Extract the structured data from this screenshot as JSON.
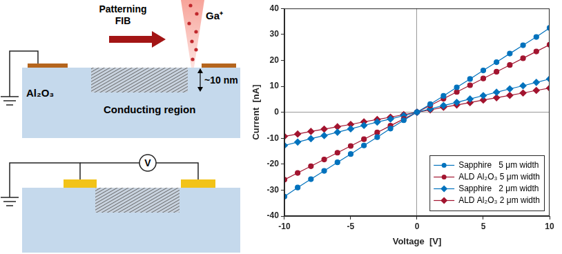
{
  "diagram": {
    "top": {
      "beam_label": "Patterning FIB",
      "ion": "Ga⁺",
      "substrate_label": "Al₂O₃",
      "depth": "~10 nm",
      "region_label": "Conducting region"
    },
    "bottom": {
      "meter": "V"
    }
  },
  "chart_data": {
    "type": "line",
    "x_label": "Voltage  [V]",
    "y_label": "Current  [nA]",
    "x": [
      -10,
      -9,
      -8,
      -7,
      -6,
      -5,
      -4,
      -3,
      -2,
      -1,
      0,
      1,
      2,
      3,
      4,
      5,
      6,
      7,
      8,
      9,
      10
    ],
    "series": [
      {
        "name": "Sapphire   5 μm width",
        "color": "#0072bd",
        "marker": "circle",
        "values": [
          -32.5,
          -29,
          -25.8,
          -22.6,
          -19.3,
          -16.1,
          -12.8,
          -9.6,
          -6.3,
          -3.1,
          0,
          3.1,
          6.3,
          9.6,
          12.8,
          16.1,
          19.3,
          22.6,
          25.8,
          29,
          32.5
        ]
      },
      {
        "name": "ALD Al₂O₃ 5 μm width",
        "color": "#a2142f",
        "marker": "circle",
        "values": [
          -26,
          -23.4,
          -20.8,
          -18.2,
          -15.6,
          -13,
          -10.4,
          -7.8,
          -5.2,
          -2.6,
          0,
          2.6,
          5.2,
          7.8,
          10.4,
          13,
          15.6,
          18.2,
          20.8,
          23.4,
          26
        ]
      },
      {
        "name": "Sapphire   2 μm width",
        "color": "#0072bd",
        "marker": "diamond",
        "values": [
          -12.8,
          -11.5,
          -10.2,
          -9,
          -7.7,
          -6.4,
          -5.1,
          -3.8,
          -2.6,
          -1.3,
          0,
          1.3,
          2.6,
          3.8,
          5.1,
          6.4,
          7.7,
          9,
          10.2,
          11.5,
          12.8
        ]
      },
      {
        "name": "ALD Al₂O₃ 2 μm width",
        "color": "#a2142f",
        "marker": "diamond",
        "values": [
          -9.3,
          -8.4,
          -7.4,
          -6.5,
          -5.6,
          -4.7,
          -3.7,
          -2.8,
          -1.9,
          -0.9,
          0,
          0.9,
          1.9,
          2.8,
          3.7,
          4.7,
          5.6,
          6.5,
          7.4,
          8.4,
          9.3
        ]
      }
    ],
    "xlim": [
      -10,
      10
    ],
    "xticks": [
      -10,
      -5,
      0,
      5,
      10
    ],
    "ylim": [
      -40,
      40
    ],
    "yticks": [
      -40,
      -30,
      -20,
      -10,
      0,
      10,
      20,
      30,
      40
    ],
    "grid": false,
    "legend": "lower right"
  }
}
